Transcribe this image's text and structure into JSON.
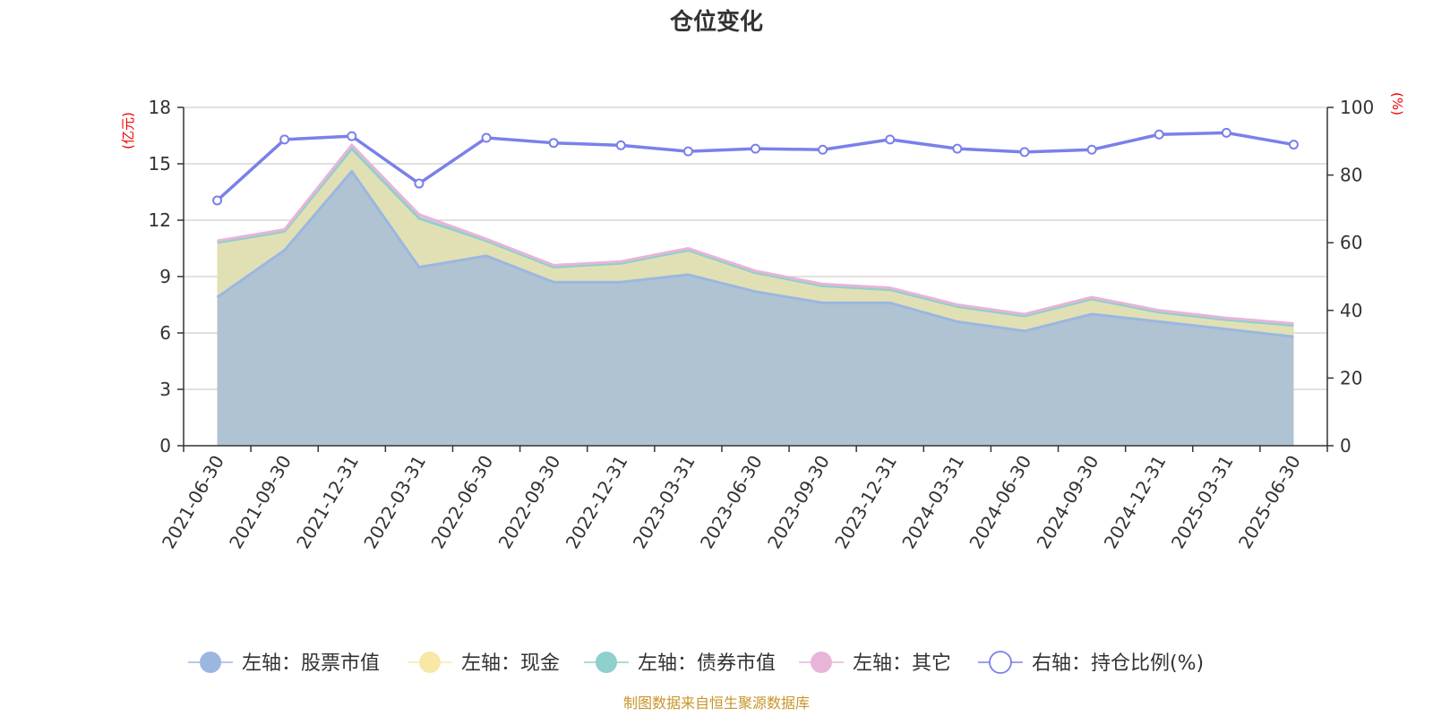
{
  "chart_data": {
    "type": "area",
    "title": "仓位变化",
    "left_axis_unit": "(亿元)",
    "right_axis_unit": "(%)",
    "categories": [
      "2021-06-30",
      "2021-09-30",
      "2021-12-31",
      "2022-03-31",
      "2022-06-30",
      "2022-09-30",
      "2022-12-31",
      "2023-03-31",
      "2023-06-30",
      "2023-09-30",
      "2023-12-31",
      "2024-03-31",
      "2024-06-30",
      "2024-09-30",
      "2024-12-31",
      "2025-03-31",
      "2025-06-30"
    ],
    "left_ylim": [
      0,
      18
    ],
    "left_yticks": [
      "0",
      "3",
      "6",
      "9",
      "12",
      "15",
      "18"
    ],
    "right_ylim": [
      0,
      100
    ],
    "right_yticks": [
      "0",
      "20",
      "40",
      "60",
      "80",
      "100"
    ],
    "stacked": true,
    "grid": true,
    "legend_position": "bottom",
    "series": [
      {
        "name": "左轴：股票市值",
        "axis": "left",
        "kind": "area",
        "color": "#9bb7e0",
        "values": [
          7.9,
          10.4,
          14.6,
          9.5,
          10.1,
          8.7,
          8.7,
          9.1,
          8.2,
          7.6,
          7.6,
          6.6,
          6.1,
          7.0,
          6.6,
          6.2,
          5.8
        ]
      },
      {
        "name": "左轴：现金",
        "axis": "left",
        "kind": "area",
        "color": "#f8e8a8",
        "values": [
          2.9,
          1.0,
          1.2,
          2.6,
          0.8,
          0.8,
          1.0,
          1.3,
          1.0,
          0.9,
          0.7,
          0.8,
          0.8,
          0.8,
          0.5,
          0.5,
          0.6
        ]
      },
      {
        "name": "左轴：债券市值",
        "axis": "left",
        "kind": "area",
        "color": "#8fd0cc",
        "values": [
          0,
          0,
          0,
          0,
          0,
          0,
          0,
          0,
          0,
          0,
          0,
          0,
          0,
          0,
          0,
          0,
          0
        ]
      },
      {
        "name": "左轴：其它",
        "axis": "left",
        "kind": "area",
        "color": "#e8b4d8",
        "values": [
          0.1,
          0.1,
          0.2,
          0.2,
          0.1,
          0.1,
          0.1,
          0.1,
          0.1,
          0.1,
          0.1,
          0.1,
          0.1,
          0.1,
          0.1,
          0.1,
          0.1
        ]
      },
      {
        "name": "右轴：持仓比例(%)",
        "axis": "right",
        "kind": "line",
        "color": "#7a80ea",
        "values": [
          72.5,
          90.5,
          91.5,
          77.5,
          91.0,
          89.5,
          88.8,
          87.0,
          87.8,
          87.5,
          90.5,
          87.8,
          86.8,
          87.5,
          92.0,
          92.5,
          89.0
        ]
      }
    ]
  },
  "source_note": "制图数据来自恒生聚源数据库"
}
